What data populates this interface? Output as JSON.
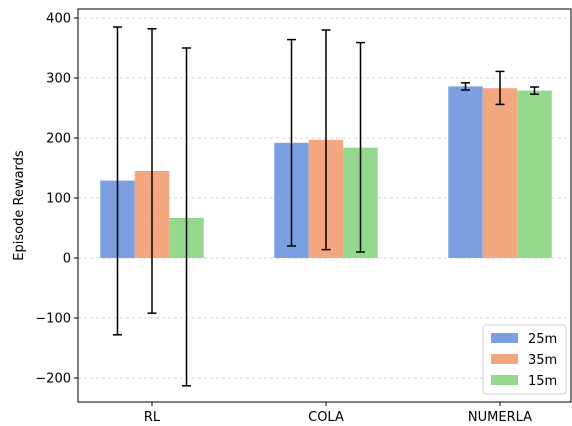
{
  "chart_data": {
    "type": "bar",
    "title": "",
    "xlabel": "",
    "ylabel": "Episode Rewards",
    "categories": [
      "RL",
      "COLA",
      "NUMERLA"
    ],
    "ylim": [
      -240,
      415
    ],
    "yticks": [
      -200,
      -100,
      0,
      100,
      200,
      300,
      400
    ],
    "ytick_labels": [
      "−200",
      "−100",
      "0",
      "100",
      "200",
      "300",
      "400"
    ],
    "grid": "horizontal dashed",
    "legend_position": "lower right",
    "series": [
      {
        "name": "25m",
        "color": "#7b9fe0",
        "values": [
          129,
          192,
          286
        ],
        "err_low": [
          -128,
          20,
          280
        ],
        "err_high": [
          385,
          364,
          292
        ]
      },
      {
        "name": "35m",
        "color": "#f2a77f",
        "values": [
          145,
          197,
          283
        ],
        "err_low": [
          -92,
          14,
          256
        ],
        "err_high": [
          382,
          380,
          311
        ]
      },
      {
        "name": "15m",
        "color": "#94d98e",
        "values": [
          67,
          184,
          279
        ],
        "err_low": [
          -213,
          10,
          273
        ],
        "err_high": [
          350,
          359,
          285
        ]
      }
    ]
  }
}
